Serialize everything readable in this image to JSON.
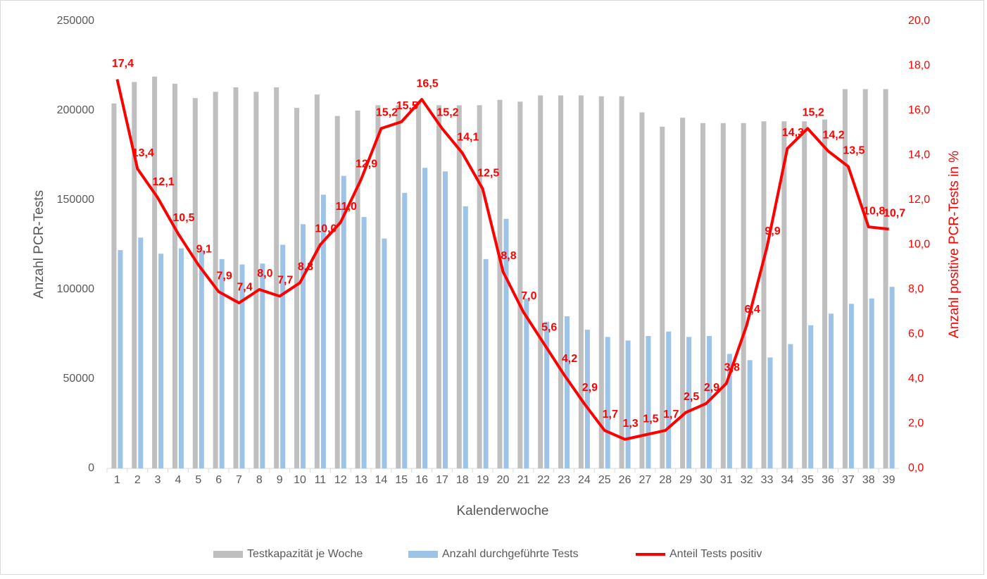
{
  "chart_data": {
    "type": "bar",
    "y_label": "Anzahl PCR-Tests",
    "y2_label": "Anzahl positive PCR-Tests in %",
    "x_label": "Kalenderwoche",
    "categories": [
      1,
      2,
      3,
      4,
      5,
      6,
      7,
      8,
      9,
      10,
      11,
      12,
      13,
      14,
      15,
      16,
      17,
      18,
      19,
      20,
      21,
      22,
      23,
      24,
      25,
      26,
      27,
      28,
      29,
      30,
      31,
      32,
      33,
      34,
      35,
      36,
      37,
      38,
      39
    ],
    "series": [
      {
        "name": "Testkapazität je Woche",
        "color": "#bfbfbf",
        "values": [
          204000,
          216000,
          219000,
          215000,
          207000,
          210500,
          213000,
          210500,
          213000,
          201500,
          209000,
          197000,
          200000,
          203000,
          203000,
          205000,
          203000,
          203000,
          203000,
          206000,
          205000,
          208500,
          208500,
          208500,
          208000,
          208000,
          199000,
          191000,
          196000,
          193000,
          193000,
          193000,
          194000,
          194000,
          194000,
          195000,
          212000,
          212000,
          212000
        ]
      },
      {
        "name": "Anzahl durchgeführte Tests",
        "color": "#9dc3e6",
        "values": [
          122000,
          129000,
          120000,
          123000,
          122000,
          117000,
          114000,
          114500,
          125000,
          136500,
          153000,
          163500,
          140500,
          128500,
          154000,
          168000,
          166000,
          146500,
          117000,
          139500,
          95000,
          82000,
          85000,
          77500,
          73500,
          71500,
          74000,
          76500,
          73500,
          74000,
          64000,
          60500,
          62000,
          69500,
          80000,
          86500,
          92000,
          95000,
          101500
        ]
      },
      {
        "name": "Anteil Tests positiv",
        "color": "#ff0000",
        "type": "line",
        "axis": "y2",
        "values": [
          17.4,
          13.4,
          12.1,
          10.5,
          9.1,
          7.9,
          7.4,
          8.0,
          7.7,
          8.3,
          10.0,
          11.0,
          12.9,
          15.2,
          15.5,
          16.5,
          15.2,
          14.1,
          12.5,
          8.8,
          7.0,
          5.6,
          4.2,
          2.9,
          1.7,
          1.3,
          1.5,
          1.7,
          2.5,
          2.9,
          3.8,
          6.4,
          9.9,
          14.3,
          15.2,
          14.2,
          13.5,
          10.8,
          10.7
        ],
        "value_labels": [
          "17,4",
          "13,4",
          "12,1",
          "10,5",
          "9,1",
          "7,9",
          "7,4",
          "8,0",
          "7,7",
          "8,3",
          "10,0",
          "11,0",
          "12,9",
          "15,2",
          "15,5",
          "16,5",
          "15,2",
          "14,1",
          "12,5",
          "8,8",
          "7,0",
          "5,6",
          "4,2",
          "2,9",
          "1,7",
          "1,3",
          "1,5",
          "1,7",
          "2,5",
          "2,9",
          "3,8",
          "6,4",
          "9,9",
          "14,3",
          "15,2",
          "14,2",
          "13,5",
          "10,8",
          "10,7"
        ]
      }
    ],
    "ylim": [
      0,
      250000
    ],
    "yticks": [
      0,
      50000,
      100000,
      150000,
      200000,
      250000
    ],
    "y2lim": [
      0,
      20
    ],
    "y2ticks": [
      {
        "value": 0,
        "label": "0,0"
      },
      {
        "value": 2,
        "label": "2,0"
      },
      {
        "value": 4,
        "label": "4,0"
      },
      {
        "value": 6,
        "label": "6,0"
      },
      {
        "value": 8,
        "label": "8,0"
      },
      {
        "value": 10,
        "label": "10,0"
      },
      {
        "value": 12,
        "label": "12,0"
      },
      {
        "value": 14,
        "label": "14,0"
      },
      {
        "value": 16,
        "label": "16,0"
      },
      {
        "value": 18,
        "label": "18,0"
      },
      {
        "value": 20,
        "label": "20,0"
      }
    ],
    "legend": "bottom"
  }
}
